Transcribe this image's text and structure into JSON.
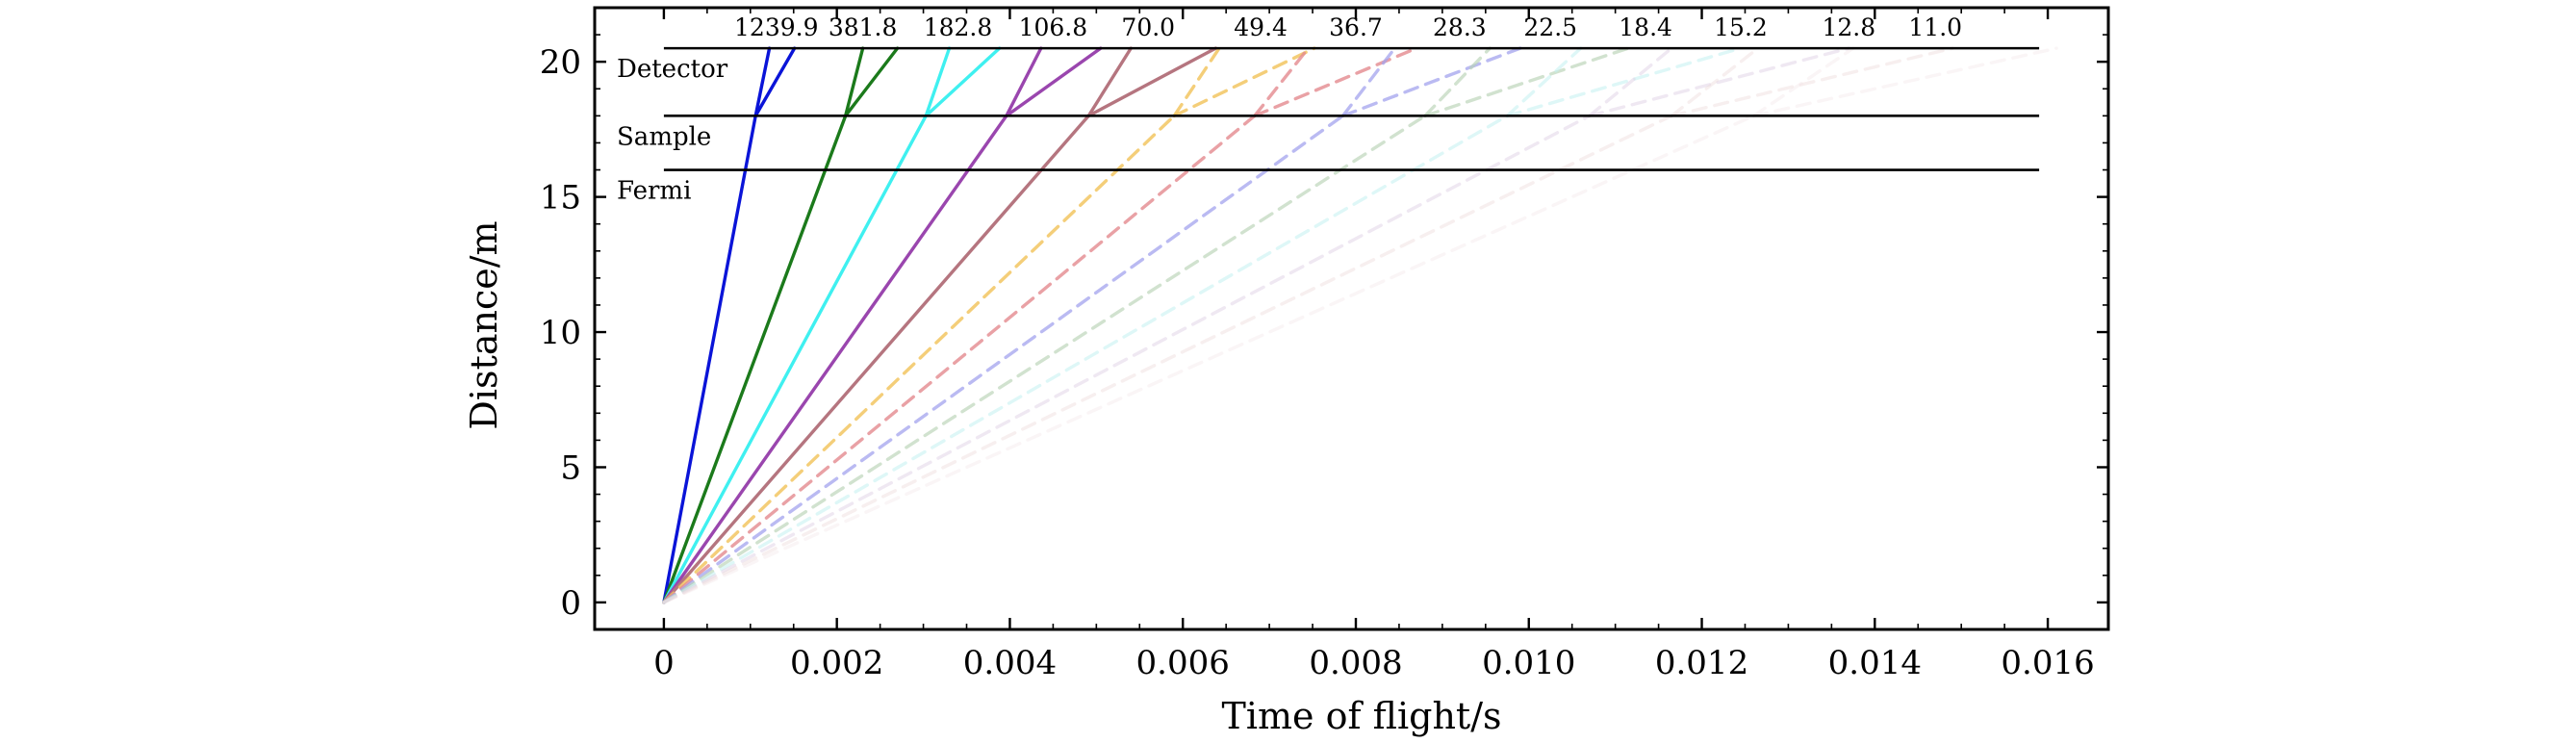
{
  "chart_data": {
    "type": "line",
    "xlabel": "Time of flight/s",
    "ylabel": "Distance/m",
    "xlim": [
      -0.0008,
      0.0167
    ],
    "ylim": [
      -1.0,
      22.0
    ],
    "xticks": [
      0,
      0.002,
      0.004,
      0.006,
      0.008,
      0.01,
      0.012,
      0.014,
      0.016
    ],
    "xtick_labels": [
      "0",
      "0.002",
      "0.004",
      "0.006",
      "0.008",
      "0.010",
      "0.012",
      "0.014",
      "0.016"
    ],
    "yticks": [
      0,
      5,
      10,
      15,
      20
    ],
    "ytick_labels": [
      "0",
      "5",
      "10",
      "15",
      "20"
    ],
    "grid": false,
    "levels": [
      {
        "label": "Detector",
        "y": 20.5,
        "x_end": 0.0159
      },
      {
        "label": "Sample",
        "y": 18.0,
        "x_end": 0.0159
      },
      {
        "label": "Fermi",
        "y": 16.0,
        "x_end": 0.0159
      }
    ],
    "sample_distance": 18.0,
    "detector_distance": 20.5,
    "series": [
      {
        "energy": "1239.9",
        "color": "#0a14d8",
        "style": "solid",
        "opacity": 1.0,
        "t_sample": 0.00106,
        "t_min": 0.00122,
        "t_max": 0.00151
      },
      {
        "energy": "381.8",
        "color": "#1b7a1b",
        "style": "solid",
        "opacity": 1.0,
        "t_sample": 0.0021,
        "t_min": 0.0023,
        "t_max": 0.0027
      },
      {
        "energy": "182.8",
        "color": "#3ff0f0",
        "style": "solid",
        "opacity": 1.0,
        "t_sample": 0.00303,
        "t_min": 0.0033,
        "t_max": 0.00388
      },
      {
        "energy": "106.8",
        "color": "#9a46ae",
        "style": "solid",
        "opacity": 1.0,
        "t_sample": 0.00396,
        "t_min": 0.00436,
        "t_max": 0.00505
      },
      {
        "energy": "70.0",
        "color": "#b5757f",
        "style": "solid",
        "opacity": 1.0,
        "t_sample": 0.00491,
        "t_min": 0.0054,
        "t_max": 0.00638
      },
      {
        "energy": "49.4",
        "color": "#f2c562",
        "style": "dashed",
        "opacity": 0.85,
        "t_sample": 0.0059,
        "t_min": 0.00642,
        "t_max": 0.00752
      },
      {
        "energy": "36.7",
        "color": "#e38a8e",
        "style": "dashed",
        "opacity": 0.8,
        "t_sample": 0.00683,
        "t_min": 0.00745,
        "t_max": 0.0087
      },
      {
        "energy": "28.3",
        "color": "#a3a3ee",
        "style": "dashed",
        "opacity": 0.75,
        "t_sample": 0.00785,
        "t_min": 0.00845,
        "t_max": 0.0099
      },
      {
        "energy": "22.5",
        "color": "#b8d2b6",
        "style": "dashed",
        "opacity": 0.65,
        "t_sample": 0.0088,
        "t_min": 0.00955,
        "t_max": 0.01115
      },
      {
        "energy": "18.4",
        "color": "#c3f1f1",
        "style": "dashed",
        "opacity": 0.55,
        "t_sample": 0.00975,
        "t_min": 0.0106,
        "t_max": 0.01245
      },
      {
        "energy": "15.2",
        "color": "#dccbe2",
        "style": "dashed",
        "opacity": 0.45,
        "t_sample": 0.0107,
        "t_min": 0.01165,
        "t_max": 0.0137
      },
      {
        "energy": "12.8",
        "color": "#ecd8d8",
        "style": "dashed",
        "opacity": 0.4,
        "t_sample": 0.01165,
        "t_min": 0.01265,
        "t_max": 0.0149
      },
      {
        "energy": "11.0",
        "color": "#f1e1e5",
        "style": "dashed",
        "opacity": 0.35,
        "t_sample": 0.0126,
        "t_min": 0.01375,
        "t_max": 0.0161
      }
    ],
    "energy_label_x": [
      0.0013,
      0.0023,
      0.0034,
      0.0045,
      0.0056,
      0.0069,
      0.008,
      0.0092,
      0.01025,
      0.01135,
      0.01245,
      0.0137,
      0.0147
    ]
  }
}
